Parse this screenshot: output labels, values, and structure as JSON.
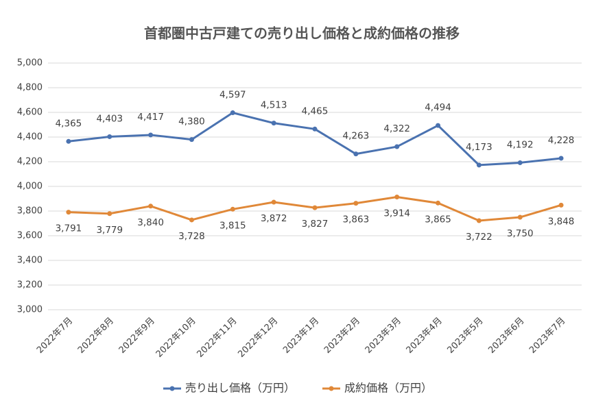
{
  "chart_data": {
    "type": "line",
    "title": "首都圏中古戸建ての売り出し価格と成約価格の推移",
    "categories": [
      "2022年7月",
      "2022年8月",
      "2022年9月",
      "2022年10月",
      "2022年11月",
      "2022年12月",
      "2023年1月",
      "2023年2月",
      "2023年3月",
      "2023年4月",
      "2023年5月",
      "2023年6月",
      "2023年7月"
    ],
    "series": [
      {
        "name": "売り出し価格（万円）",
        "color": "#4a72b0",
        "values": [
          4365,
          4403,
          4417,
          4380,
          4597,
          4513,
          4465,
          4263,
          4322,
          4494,
          4173,
          4192,
          4228
        ],
        "value_labels": [
          "4,365",
          "4,403",
          "4,417",
          "4,380",
          "4,597",
          "4,513",
          "4,465",
          "4,263",
          "4,322",
          "4,494",
          "4,173",
          "4,192",
          "4,228"
        ]
      },
      {
        "name": "成約価格（万円）",
        "color": "#e08838",
        "values": [
          3791,
          3779,
          3840,
          3728,
          3815,
          3872,
          3827,
          3863,
          3914,
          3865,
          3722,
          3750,
          3848
        ],
        "value_labels": [
          "3,791",
          "3,779",
          "3,840",
          "3,728",
          "3,815",
          "3,872",
          "3,827",
          "3,863",
          "3,914",
          "3,865",
          "3,722",
          "3,750",
          "3,848"
        ]
      }
    ],
    "ylim": [
      3000,
      5000
    ],
    "yticks": [
      {
        "value": 3000,
        "label": "3,000"
      },
      {
        "value": 3200,
        "label": "3,200"
      },
      {
        "value": 3400,
        "label": "3,400"
      },
      {
        "value": 3600,
        "label": "3,600"
      },
      {
        "value": 3800,
        "label": "3,800"
      },
      {
        "value": 4000,
        "label": "4,000"
      },
      {
        "value": 4200,
        "label": "4,200"
      },
      {
        "value": 4400,
        "label": "4,400"
      },
      {
        "value": 4600,
        "label": "4,600"
      },
      {
        "value": 4800,
        "label": "4,800"
      },
      {
        "value": 5000,
        "label": "5,000"
      }
    ],
    "grid": true,
    "legend": "bottom"
  }
}
